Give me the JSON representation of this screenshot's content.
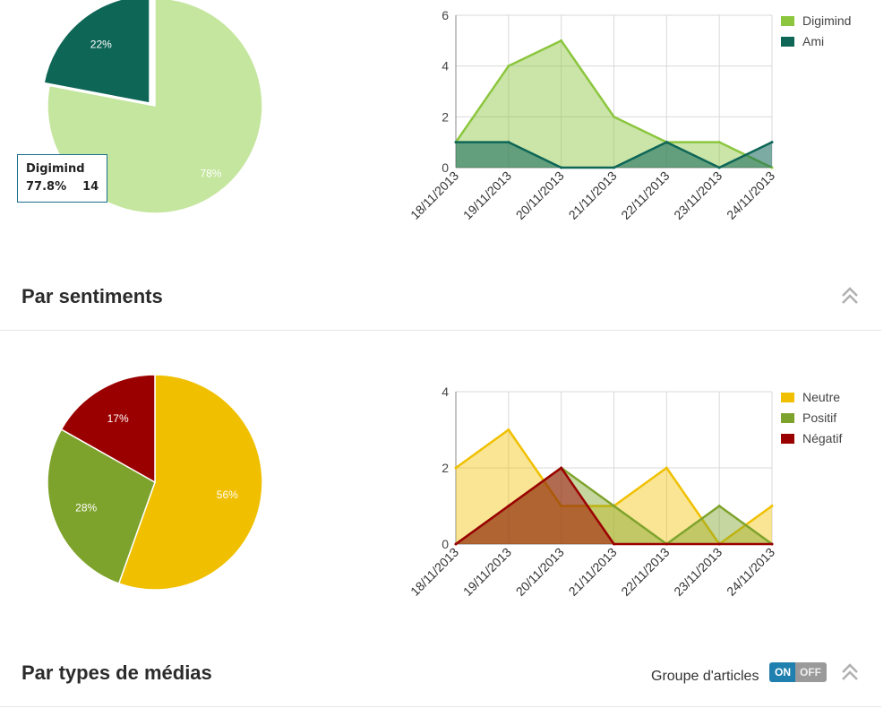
{
  "sections": {
    "sentiments_title": "Par sentiments",
    "media_title": "Par types de médias",
    "group_label": "Groupe d'articles",
    "toggle_on": "ON",
    "toggle_off": "OFF"
  },
  "tooltip": {
    "name": "Digimind",
    "percent": "77.8%",
    "count": "14"
  },
  "colors": {
    "digimind": "#8cc63f",
    "digimind_light": "#c5e69f",
    "ami": "#0e6657",
    "neutre": "#f0c000",
    "positif": "#7ea32c",
    "negatif": "#9b0000",
    "toggle_on": "#1f7fae",
    "toggle_off": "#9a9a9a"
  },
  "chart_data": [
    {
      "type": "pie",
      "labels": [
        "Digimind",
        "Ami"
      ],
      "values": [
        78,
        22
      ],
      "slice_labels": [
        "78%",
        "22%"
      ]
    },
    {
      "type": "area",
      "categories": [
        "18/11/2013",
        "19/11/2013",
        "20/11/2013",
        "21/11/2013",
        "22/11/2013",
        "23/11/2013",
        "24/11/2013"
      ],
      "ylim": [
        0,
        6
      ],
      "yticks": [
        "0",
        "2",
        "4",
        "6"
      ],
      "legend": "right",
      "grid": true,
      "series": [
        {
          "name": "Digimind",
          "values": [
            1,
            4,
            5,
            2,
            1,
            1,
            0
          ]
        },
        {
          "name": "Ami",
          "values": [
            1,
            1,
            0,
            0,
            1,
            0,
            1
          ]
        }
      ]
    },
    {
      "type": "pie",
      "labels": [
        "Neutre",
        "Positif",
        "Négatif"
      ],
      "values": [
        56,
        28,
        17
      ],
      "slice_labels": [
        "56%",
        "28%",
        "17%"
      ]
    },
    {
      "type": "area",
      "categories": [
        "18/11/2013",
        "19/11/2013",
        "20/11/2013",
        "21/11/2013",
        "22/11/2013",
        "23/11/2013",
        "24/11/2013"
      ],
      "ylim": [
        0,
        4
      ],
      "yticks": [
        "0",
        "2",
        "4"
      ],
      "legend": "right",
      "grid": true,
      "series": [
        {
          "name": "Neutre",
          "values": [
            2,
            3,
            1,
            1,
            2,
            0,
            1
          ]
        },
        {
          "name": "Positif",
          "values": [
            0,
            1,
            2,
            1,
            0,
            1,
            0
          ]
        },
        {
          "name": "Négatif",
          "values": [
            0,
            1,
            2,
            0,
            0,
            0,
            0
          ]
        }
      ]
    }
  ]
}
